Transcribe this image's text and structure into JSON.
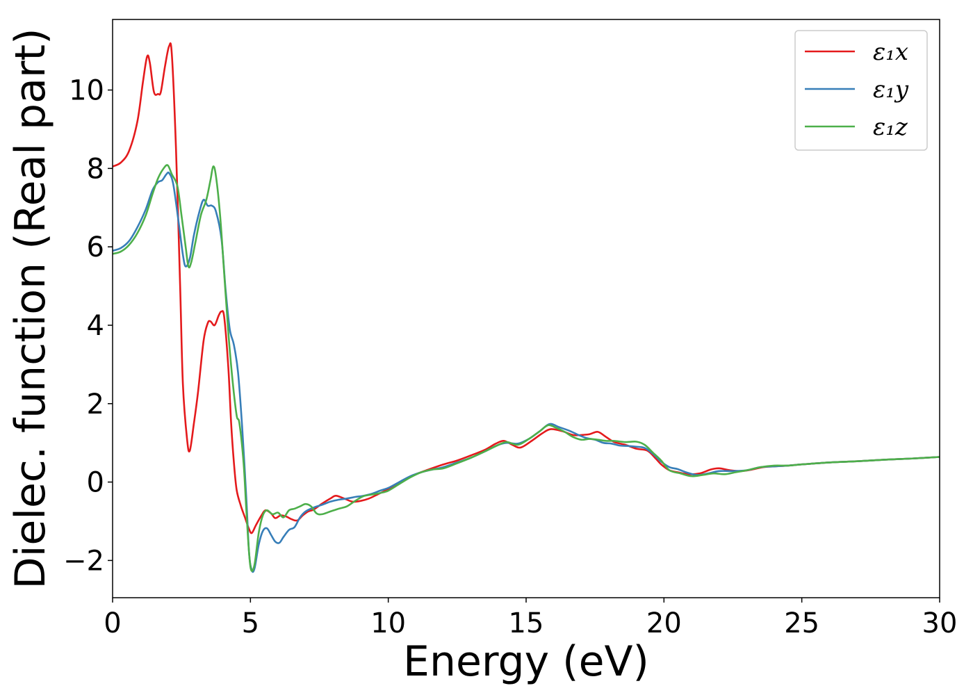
{
  "chart_data": {
    "type": "line",
    "title": "",
    "xlabel": "Energy (eV)",
    "ylabel": "Dielec. function (Real part)",
    "xlim": [
      0,
      30
    ],
    "ylim": [
      -2.95,
      11.8
    ],
    "xticks": [
      0,
      5,
      10,
      15,
      20,
      25,
      30
    ],
    "yticks": [
      -2,
      0,
      2,
      4,
      6,
      8,
      10
    ],
    "xtick_labels": [
      "0",
      "5",
      "10",
      "15",
      "20",
      "25",
      "30"
    ],
    "ytick_labels": [
      "−2",
      "0",
      "2",
      "4",
      "6",
      "8",
      "10"
    ],
    "grid": false,
    "legend": {
      "position": "top-right"
    },
    "series": [
      {
        "name": "ε₁x",
        "color": "#e41a1c",
        "points": [
          [
            0,
            8.05
          ],
          [
            0.3,
            8.15
          ],
          [
            0.6,
            8.45
          ],
          [
            0.9,
            9.2
          ],
          [
            1.1,
            10.2
          ],
          [
            1.25,
            10.85
          ],
          [
            1.35,
            10.7
          ],
          [
            1.5,
            9.95
          ],
          [
            1.65,
            9.9
          ],
          [
            1.75,
            9.95
          ],
          [
            1.9,
            10.6
          ],
          [
            2.05,
            11.12
          ],
          [
            2.15,
            10.9
          ],
          [
            2.3,
            8.5
          ],
          [
            2.45,
            5.0
          ],
          [
            2.55,
            2.5
          ],
          [
            2.7,
            1.1
          ],
          [
            2.8,
            0.8
          ],
          [
            2.95,
            1.5
          ],
          [
            3.1,
            2.3
          ],
          [
            3.3,
            3.6
          ],
          [
            3.45,
            4.05
          ],
          [
            3.55,
            4.1
          ],
          [
            3.7,
            4.0
          ],
          [
            3.85,
            4.25
          ],
          [
            3.95,
            4.35
          ],
          [
            4.05,
            4.2
          ],
          [
            4.2,
            2.9
          ],
          [
            4.3,
            1.5
          ],
          [
            4.4,
            0.5
          ],
          [
            4.5,
            -0.2
          ],
          [
            4.65,
            -0.6
          ],
          [
            4.8,
            -0.9
          ],
          [
            4.95,
            -1.2
          ],
          [
            5.05,
            -1.3
          ],
          [
            5.2,
            -1.1
          ],
          [
            5.4,
            -0.85
          ],
          [
            5.55,
            -0.72
          ],
          [
            5.75,
            -0.8
          ],
          [
            5.9,
            -0.92
          ],
          [
            6.1,
            -0.85
          ],
          [
            6.3,
            -0.88
          ],
          [
            6.5,
            -0.95
          ],
          [
            6.7,
            -0.98
          ],
          [
            6.9,
            -0.85
          ],
          [
            7.1,
            -0.75
          ],
          [
            7.3,
            -0.7
          ],
          [
            7.6,
            -0.55
          ],
          [
            7.9,
            -0.42
          ],
          [
            8.1,
            -0.35
          ],
          [
            8.4,
            -0.42
          ],
          [
            8.7,
            -0.5
          ],
          [
            9.0,
            -0.48
          ],
          [
            9.3,
            -0.42
          ],
          [
            9.6,
            -0.32
          ],
          [
            10.0,
            -0.18
          ],
          [
            10.3,
            -0.05
          ],
          [
            10.6,
            0.05
          ],
          [
            11.0,
            0.2
          ],
          [
            11.5,
            0.33
          ],
          [
            12.0,
            0.45
          ],
          [
            12.5,
            0.55
          ],
          [
            13.0,
            0.68
          ],
          [
            13.5,
            0.82
          ],
          [
            13.9,
            0.98
          ],
          [
            14.2,
            1.05
          ],
          [
            14.5,
            0.95
          ],
          [
            14.8,
            0.88
          ],
          [
            15.2,
            1.05
          ],
          [
            15.6,
            1.25
          ],
          [
            15.9,
            1.35
          ],
          [
            16.3,
            1.3
          ],
          [
            16.7,
            1.2
          ],
          [
            17.0,
            1.2
          ],
          [
            17.3,
            1.22
          ],
          [
            17.6,
            1.28
          ],
          [
            17.9,
            1.15
          ],
          [
            18.2,
            1.02
          ],
          [
            18.6,
            0.95
          ],
          [
            19.0,
            0.85
          ],
          [
            19.4,
            0.8
          ],
          [
            19.7,
            0.6
          ],
          [
            19.9,
            0.45
          ],
          [
            20.2,
            0.3
          ],
          [
            20.5,
            0.25
          ],
          [
            20.9,
            0.2
          ],
          [
            21.3,
            0.22
          ],
          [
            21.7,
            0.32
          ],
          [
            22.0,
            0.35
          ],
          [
            22.4,
            0.3
          ],
          [
            22.8,
            0.28
          ],
          [
            23.2,
            0.32
          ],
          [
            23.6,
            0.38
          ],
          [
            24.0,
            0.4
          ],
          [
            24.5,
            0.42
          ],
          [
            25.0,
            0.45
          ],
          [
            26,
            0.5
          ],
          [
            27,
            0.53
          ],
          [
            28,
            0.57
          ],
          [
            29,
            0.6
          ],
          [
            30,
            0.64
          ]
        ]
      },
      {
        "name": "ε₁y",
        "color": "#377eb8",
        "points": [
          [
            0,
            5.9
          ],
          [
            0.3,
            5.97
          ],
          [
            0.6,
            6.15
          ],
          [
            0.9,
            6.5
          ],
          [
            1.2,
            6.95
          ],
          [
            1.45,
            7.45
          ],
          [
            1.65,
            7.65
          ],
          [
            1.8,
            7.7
          ],
          [
            1.95,
            7.85
          ],
          [
            2.05,
            7.88
          ],
          [
            2.2,
            7.6
          ],
          [
            2.4,
            6.6
          ],
          [
            2.55,
            5.8
          ],
          [
            2.65,
            5.5
          ],
          [
            2.8,
            5.7
          ],
          [
            2.95,
            6.3
          ],
          [
            3.15,
            6.9
          ],
          [
            3.3,
            7.2
          ],
          [
            3.45,
            7.05
          ],
          [
            3.6,
            7.05
          ],
          [
            3.75,
            6.9
          ],
          [
            3.95,
            6.2
          ],
          [
            4.1,
            4.9
          ],
          [
            4.25,
            3.9
          ],
          [
            4.4,
            3.5
          ],
          [
            4.55,
            2.8
          ],
          [
            4.7,
            1.4
          ],
          [
            4.85,
            -0.4
          ],
          [
            4.95,
            -1.8
          ],
          [
            5.05,
            -2.25
          ],
          [
            5.15,
            -2.2
          ],
          [
            5.3,
            -1.6
          ],
          [
            5.45,
            -1.25
          ],
          [
            5.6,
            -1.18
          ],
          [
            5.75,
            -1.35
          ],
          [
            5.9,
            -1.52
          ],
          [
            6.05,
            -1.55
          ],
          [
            6.2,
            -1.4
          ],
          [
            6.4,
            -1.22
          ],
          [
            6.6,
            -1.15
          ],
          [
            6.8,
            -0.9
          ],
          [
            7.0,
            -0.75
          ],
          [
            7.3,
            -0.65
          ],
          [
            7.6,
            -0.58
          ],
          [
            7.9,
            -0.5
          ],
          [
            8.2,
            -0.45
          ],
          [
            8.5,
            -0.42
          ],
          [
            8.8,
            -0.38
          ],
          [
            9.1,
            -0.35
          ],
          [
            9.4,
            -0.3
          ],
          [
            9.7,
            -0.22
          ],
          [
            10.0,
            -0.15
          ],
          [
            10.4,
            0.0
          ],
          [
            10.8,
            0.15
          ],
          [
            11.2,
            0.25
          ],
          [
            11.6,
            0.32
          ],
          [
            12.0,
            0.38
          ],
          [
            12.5,
            0.5
          ],
          [
            13.0,
            0.62
          ],
          [
            13.5,
            0.78
          ],
          [
            14.0,
            0.95
          ],
          [
            14.3,
            1.0
          ],
          [
            14.7,
            0.98
          ],
          [
            15.1,
            1.1
          ],
          [
            15.5,
            1.3
          ],
          [
            15.85,
            1.48
          ],
          [
            16.2,
            1.4
          ],
          [
            16.6,
            1.3
          ],
          [
            16.9,
            1.2
          ],
          [
            17.2,
            1.12
          ],
          [
            17.5,
            1.08
          ],
          [
            17.8,
            1.0
          ],
          [
            18.1,
            0.98
          ],
          [
            18.4,
            0.93
          ],
          [
            18.7,
            0.92
          ],
          [
            19.0,
            0.9
          ],
          [
            19.3,
            0.87
          ],
          [
            19.6,
            0.72
          ],
          [
            19.9,
            0.52
          ],
          [
            20.2,
            0.38
          ],
          [
            20.5,
            0.33
          ],
          [
            20.8,
            0.25
          ],
          [
            21.2,
            0.18
          ],
          [
            21.6,
            0.22
          ],
          [
            22.0,
            0.28
          ],
          [
            22.5,
            0.28
          ],
          [
            23.0,
            0.3
          ],
          [
            23.5,
            0.38
          ],
          [
            24.0,
            0.4
          ],
          [
            24.5,
            0.42
          ],
          [
            25.0,
            0.45
          ],
          [
            26,
            0.5
          ],
          [
            27,
            0.53
          ],
          [
            28,
            0.57
          ],
          [
            29,
            0.6
          ],
          [
            30,
            0.64
          ]
        ]
      },
      {
        "name": "ε₁z",
        "color": "#4daf4a",
        "points": [
          [
            0,
            5.82
          ],
          [
            0.3,
            5.88
          ],
          [
            0.6,
            6.05
          ],
          [
            0.9,
            6.35
          ],
          [
            1.2,
            6.8
          ],
          [
            1.45,
            7.35
          ],
          [
            1.65,
            7.75
          ],
          [
            1.85,
            8.0
          ],
          [
            2.0,
            8.08
          ],
          [
            2.15,
            7.85
          ],
          [
            2.35,
            7.55
          ],
          [
            2.5,
            6.8
          ],
          [
            2.65,
            6.0
          ],
          [
            2.75,
            5.5
          ],
          [
            2.85,
            5.6
          ],
          [
            3.0,
            6.1
          ],
          [
            3.2,
            6.8
          ],
          [
            3.4,
            7.2
          ],
          [
            3.55,
            7.7
          ],
          [
            3.65,
            8.05
          ],
          [
            3.75,
            7.8
          ],
          [
            3.9,
            6.8
          ],
          [
            4.05,
            5.3
          ],
          [
            4.2,
            3.8
          ],
          [
            4.35,
            2.6
          ],
          [
            4.5,
            1.7
          ],
          [
            4.6,
            1.5
          ],
          [
            4.75,
            0.5
          ],
          [
            4.85,
            -0.7
          ],
          [
            4.95,
            -1.8
          ],
          [
            5.03,
            -2.25
          ],
          [
            5.15,
            -2.1
          ],
          [
            5.3,
            -1.3
          ],
          [
            5.45,
            -0.85
          ],
          [
            5.6,
            -0.72
          ],
          [
            5.8,
            -0.82
          ],
          [
            6.0,
            -0.78
          ],
          [
            6.2,
            -0.9
          ],
          [
            6.4,
            -0.72
          ],
          [
            6.6,
            -0.68
          ],
          [
            6.8,
            -0.62
          ],
          [
            7.0,
            -0.56
          ],
          [
            7.2,
            -0.62
          ],
          [
            7.4,
            -0.8
          ],
          [
            7.6,
            -0.82
          ],
          [
            7.9,
            -0.75
          ],
          [
            8.2,
            -0.68
          ],
          [
            8.5,
            -0.62
          ],
          [
            8.8,
            -0.48
          ],
          [
            9.1,
            -0.36
          ],
          [
            9.4,
            -0.32
          ],
          [
            9.7,
            -0.28
          ],
          [
            10.0,
            -0.22
          ],
          [
            10.4,
            -0.05
          ],
          [
            10.8,
            0.12
          ],
          [
            11.2,
            0.25
          ],
          [
            11.6,
            0.32
          ],
          [
            12.0,
            0.35
          ],
          [
            12.5,
            0.48
          ],
          [
            13.0,
            0.62
          ],
          [
            13.5,
            0.78
          ],
          [
            14.0,
            0.95
          ],
          [
            14.3,
            1.02
          ],
          [
            14.7,
            0.95
          ],
          [
            15.1,
            1.1
          ],
          [
            15.5,
            1.3
          ],
          [
            15.8,
            1.45
          ],
          [
            16.1,
            1.38
          ],
          [
            16.4,
            1.28
          ],
          [
            16.7,
            1.15
          ],
          [
            17.0,
            1.08
          ],
          [
            17.3,
            1.1
          ],
          [
            17.6,
            1.08
          ],
          [
            17.9,
            1.05
          ],
          [
            18.2,
            1.05
          ],
          [
            18.6,
            1.02
          ],
          [
            19.0,
            1.03
          ],
          [
            19.3,
            0.95
          ],
          [
            19.6,
            0.75
          ],
          [
            19.9,
            0.55
          ],
          [
            20.2,
            0.3
          ],
          [
            20.6,
            0.22
          ],
          [
            21.0,
            0.15
          ],
          [
            21.4,
            0.18
          ],
          [
            21.8,
            0.22
          ],
          [
            22.2,
            0.2
          ],
          [
            22.6,
            0.25
          ],
          [
            23.0,
            0.3
          ],
          [
            23.5,
            0.38
          ],
          [
            24.0,
            0.42
          ],
          [
            24.5,
            0.42
          ],
          [
            25.0,
            0.45
          ],
          [
            26,
            0.5
          ],
          [
            27,
            0.53
          ],
          [
            28,
            0.57
          ],
          [
            29,
            0.6
          ],
          [
            30,
            0.64
          ]
        ]
      }
    ]
  }
}
